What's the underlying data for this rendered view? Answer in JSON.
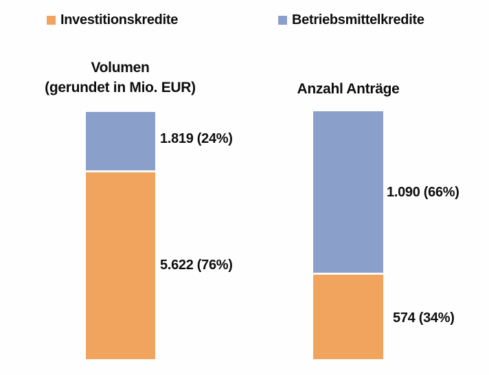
{
  "legend": {
    "items": [
      {
        "label": "Investitionskredite",
        "color": "#F0A45E"
      },
      {
        "label": "Betriebsmittelkredite",
        "color": "#8B9FCB"
      }
    ]
  },
  "columns": [
    {
      "title_line1": "Volumen",
      "title_line2": "(gerundet in Mio. EUR)",
      "top_segment": {
        "series": "Betriebsmittelkredite",
        "label": "1.819 (24%)"
      },
      "bottom_segment": {
        "series": "Investitionskredite",
        "label": "5.622 (76%)"
      }
    },
    {
      "title_line1": "Anzahl Anträge",
      "title_line2": "",
      "top_segment": {
        "series": "Betriebsmittelkredite",
        "label": "1.090 (66%)"
      },
      "bottom_segment": {
        "series": "Investitionskredite",
        "label": "574 (34%)"
      }
    }
  ],
  "chart_data": {
    "type": "bar",
    "subtype": "stacked-column",
    "title": "",
    "categories": [
      "Volumen (gerundet in Mio. EUR)",
      "Anzahl Anträge"
    ],
    "series": [
      {
        "name": "Investitionskredite",
        "color": "#F0A45E",
        "values": [
          5622,
          574
        ],
        "percent": [
          76,
          34
        ],
        "data_labels": [
          "5.622 (76%)",
          "574 (34%)"
        ]
      },
      {
        "name": "Betriebsmittelkredite",
        "color": "#8B9FCB",
        "values": [
          1819,
          1090
        ],
        "percent": [
          24,
          66
        ],
        "data_labels": [
          "1.819 (24%)",
          "1.090 (66%)"
        ]
      }
    ],
    "stack_order_top_to_bottom": [
      "Betriebsmittelkredite",
      "Investitionskredite"
    ],
    "legend_position": "top",
    "grid": false,
    "axes_visible": false,
    "number_format": "German (dot as thousands separator)"
  }
}
